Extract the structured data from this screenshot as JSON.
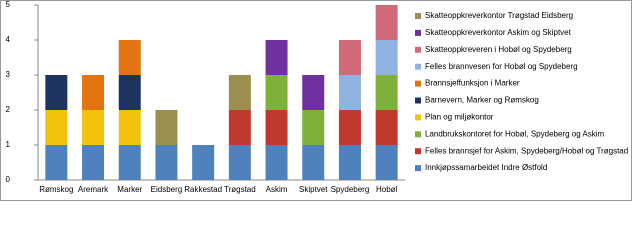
{
  "chart_data": {
    "type": "stacked_bar",
    "categories": [
      "Rømskog",
      "Aremark",
      "Marker",
      "Eidsberg",
      "Rakkestad",
      "Trøgstad",
      "Askim",
      "Skiptvet",
      "Spydeberg",
      "Hobøl"
    ],
    "series": [
      {
        "name": "Innkjøpssamarbeidet Indre Østfold",
        "color": "#4f81bd",
        "values": [
          1,
          1,
          1,
          1,
          1,
          1,
          1,
          1,
          1,
          1
        ]
      },
      {
        "name": "Felles brannsjef for Askim, Spydeberg/Hobøl og Trøgstad",
        "color": "#c0392f",
        "values": [
          0,
          0,
          0,
          0,
          0,
          1,
          1,
          0,
          1,
          1
        ]
      },
      {
        "name": "Landbrukskontoret for Hobøl, Spydeberg og Askim",
        "color": "#7fb03a",
        "values": [
          0,
          0,
          0,
          0,
          0,
          0,
          1,
          1,
          0,
          1
        ]
      },
      {
        "name": "Plan og miljøkontor",
        "color": "#f2c20c",
        "values": [
          1,
          1,
          1,
          0,
          0,
          0,
          0,
          0,
          0,
          0
        ]
      },
      {
        "name": "Barnevern, Marker og Rømskog",
        "color": "#1f3361",
        "values": [
          1,
          0,
          1,
          0,
          0,
          0,
          0,
          0,
          0,
          0
        ]
      },
      {
        "name": "Brannsjeffunksjon i Marker",
        "color": "#e3740f",
        "values": [
          0,
          1,
          1,
          0,
          0,
          0,
          0,
          0,
          0,
          0
        ]
      },
      {
        "name": "Felles brannvesen for Hobøl og Spydeberg",
        "color": "#8fb2df",
        "values": [
          0,
          0,
          0,
          0,
          0,
          0,
          0,
          0,
          1,
          1
        ]
      },
      {
        "name": "Skatteoppkreveren i Hobøl og Spydeberg",
        "color": "#d06a78",
        "values": [
          0,
          0,
          0,
          0,
          0,
          0,
          0,
          0,
          1,
          1
        ]
      },
      {
        "name": "Skatteoppkreverkontor Askim og Skiptvet",
        "color": "#7030a0",
        "values": [
          0,
          0,
          0,
          0,
          0,
          0,
          1,
          1,
          0,
          0
        ]
      },
      {
        "name": "Skatteoppkreverkontor Trøgstad Eidsberg",
        "color": "#9a8f4e",
        "values": [
          0,
          0,
          0,
          1,
          0,
          1,
          0,
          0,
          0,
          0
        ]
      }
    ],
    "ylim": [
      0,
      5
    ],
    "yticks": [
      0,
      1,
      2,
      3,
      4,
      5
    ],
    "grid": false,
    "legend": "right"
  }
}
